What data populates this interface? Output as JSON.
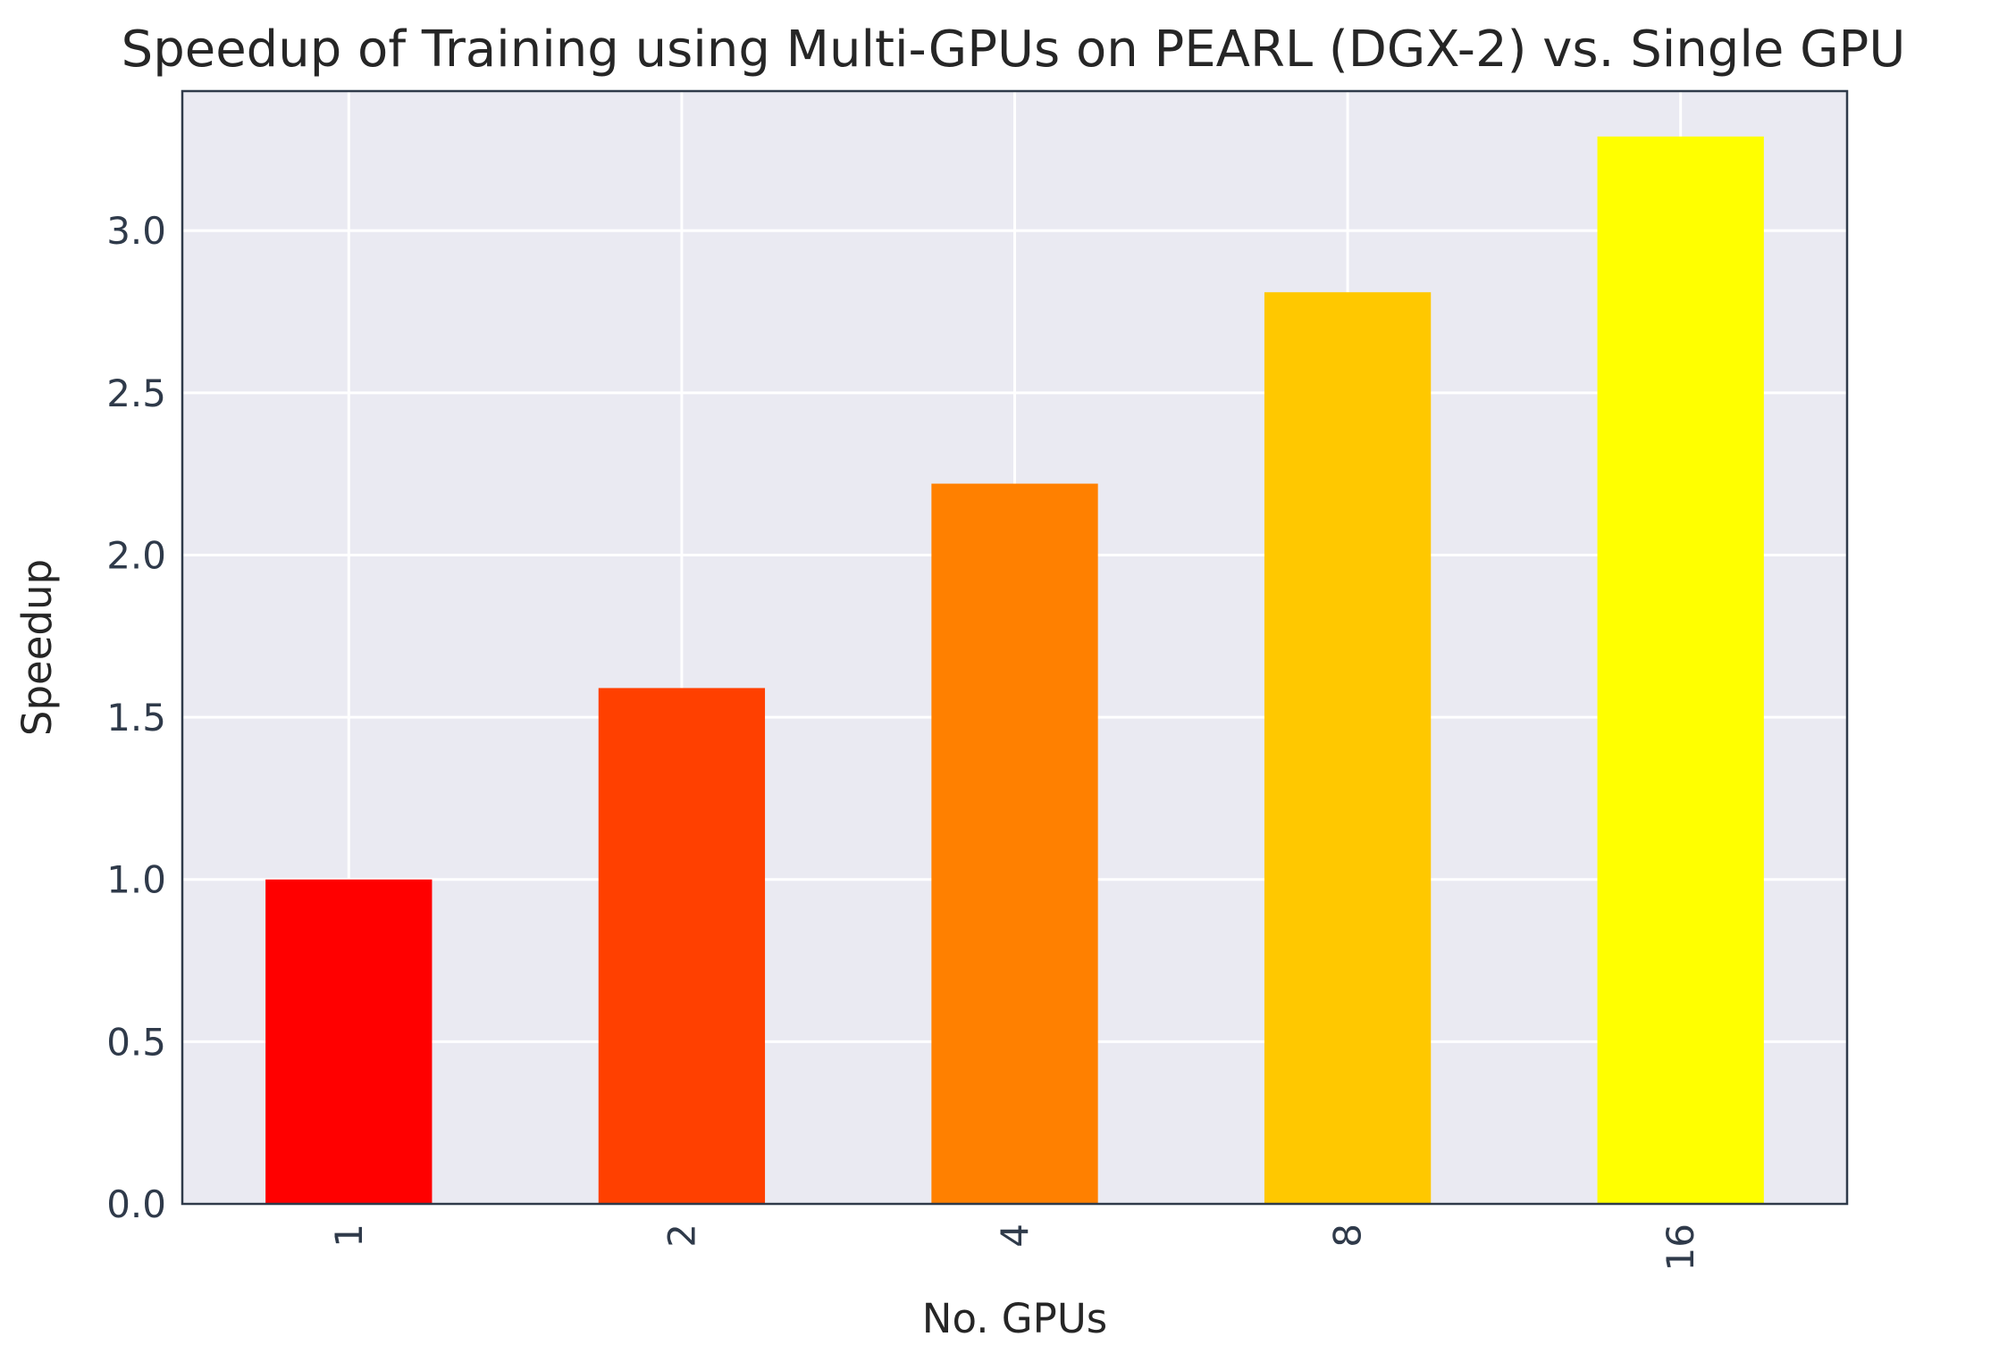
{
  "chart_data": {
    "type": "bar",
    "title": "Speedup of Training using Multi-GPUs on PEARL (DGX-2) vs. Single GPU",
    "xlabel": "No. GPUs",
    "ylabel": "Speedup",
    "categories": [
      "1",
      "2",
      "4",
      "8",
      "16"
    ],
    "values": [
      1.0,
      1.59,
      2.22,
      2.81,
      3.29
    ],
    "colors": [
      "#ff0000",
      "#ff4000",
      "#ff8000",
      "#ffc800",
      "#ffff00"
    ],
    "ylim": [
      0,
      3.43
    ],
    "yticks": [
      0.0,
      0.5,
      1.0,
      1.5,
      2.0,
      2.5,
      3.0
    ],
    "ytick_labels": [
      "0.0",
      "0.5",
      "1.0",
      "1.5",
      "2.0",
      "2.5",
      "3.0"
    ],
    "xtick_rotation": "vertical",
    "grid": true,
    "background": "#eaeaf2",
    "grid_color": "#ffffff",
    "spine_color": "#2f3a4a"
  }
}
